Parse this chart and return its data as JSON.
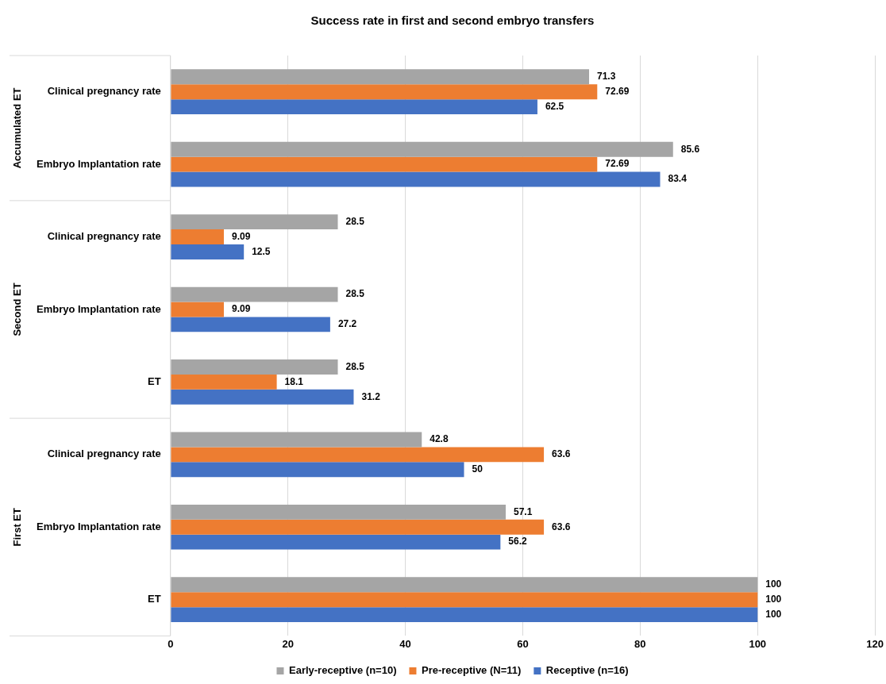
{
  "chart_data": {
    "type": "bar",
    "orientation": "horizontal",
    "title": "Success rate in first and second embryo transfers",
    "categories": [
      "Clinical pregnancy rate",
      "Embryo Implantation rate",
      "Clinical pregnancy rate",
      "Embryo Implantation rate",
      "ET",
      "Clinical pregnancy rate",
      "Embryo Implantation rate",
      "ET"
    ],
    "series": [
      {
        "name": "Early-receptive (n=10)",
        "color": "#a5a5a5",
        "values": [
          71.3,
          85.6,
          28.5,
          28.5,
          28.5,
          42.8,
          57.1,
          100
        ]
      },
      {
        "name": "Pre-receptive (N=11)",
        "color": "#ed7d31",
        "values": [
          72.69,
          72.69,
          9.09,
          9.09,
          18.1,
          63.6,
          63.6,
          100
        ]
      },
      {
        "name": "Receptive (n=16)",
        "color": "#4472c4",
        "values": [
          62.5,
          83.4,
          12.5,
          27.2,
          31.2,
          50,
          56.2,
          100
        ]
      }
    ],
    "xlim": [
      0,
      120
    ],
    "xticks": [
      0,
      20,
      40,
      60,
      80,
      100,
      120
    ],
    "annotations": [
      "Accumulated ET",
      "Second ET",
      "First ET"
    ],
    "data_labels": true,
    "grid": "x",
    "legend": "bottom"
  }
}
